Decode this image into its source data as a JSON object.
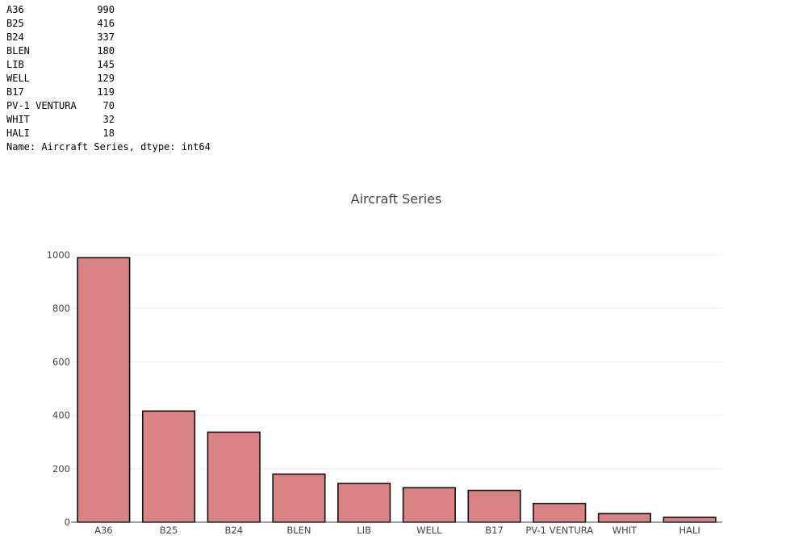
{
  "console": {
    "rows": [
      {
        "label": "A36",
        "value": "990"
      },
      {
        "label": "B25",
        "value": "416"
      },
      {
        "label": "B24",
        "value": "337"
      },
      {
        "label": "BLEN",
        "value": "180"
      },
      {
        "label": "LIB",
        "value": "145"
      },
      {
        "label": "WELL",
        "value": "129"
      },
      {
        "label": "B17",
        "value": "119"
      },
      {
        "label": "PV-1 VENTURA",
        "value": "70"
      },
      {
        "label": "WHIT",
        "value": "32"
      },
      {
        "label": "HALI",
        "value": "18"
      }
    ],
    "footer": "Name: Aircraft Series, dtype: int64"
  },
  "chart_data": {
    "type": "bar",
    "title": "Aircraft Series",
    "categories": [
      "A36",
      "B25",
      "B24",
      "BLEN",
      "LIB",
      "WELL",
      "B17",
      "PV-1 VENTURA",
      "WHIT",
      "HALI"
    ],
    "values": [
      990,
      416,
      337,
      180,
      145,
      129,
      119,
      70,
      32,
      18
    ],
    "ylim": [
      0,
      1000
    ],
    "yticks": [
      "0",
      "200",
      "400",
      "600",
      "800",
      "1000"
    ],
    "grid": true,
    "xlabel": "",
    "ylabel": "",
    "colors": {
      "bar_fill": "#d98385",
      "bar_stroke": "#111111",
      "grid": "#eeeeee",
      "axis": "#444444"
    }
  }
}
